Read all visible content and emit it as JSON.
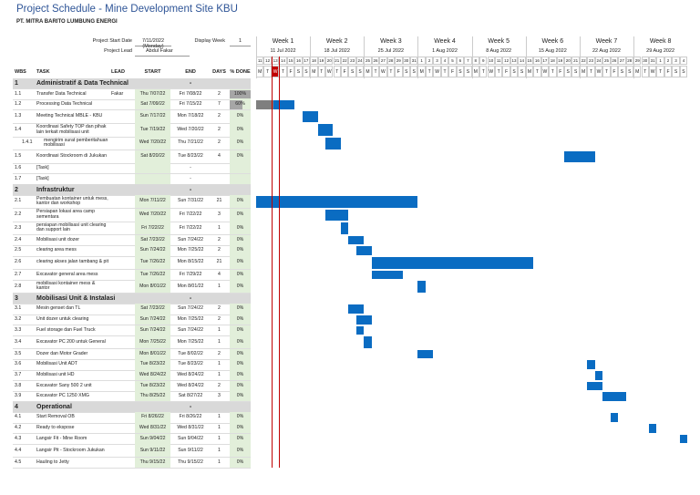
{
  "header": {
    "title": "Project Schedule - Mine Development Site KBU",
    "subtitle": "PT. MITRA BARITO LUMBUNG ENERGI"
  },
  "info": {
    "start_label": "Project Start Date",
    "start_value": "7/11/2022 (Monday)",
    "week_label": "Display Week",
    "week_value": 1,
    "lead_label": "Project Lead",
    "lead_value": "Abdul Fakar"
  },
  "columns": {
    "wbs": "WBS",
    "task": "TASK",
    "lead": "LEAD",
    "start": "START",
    "end": "END",
    "days": "DAYS",
    "done": "% DONE"
  },
  "timeline": {
    "day_letters": [
      "M",
      "T",
      "W",
      "T",
      "F",
      "S",
      "S"
    ],
    "weeks": [
      {
        "label": "Week 1",
        "date": "11 Jul 2022",
        "days": [
          11,
          12,
          13,
          14,
          15,
          16,
          17
        ]
      },
      {
        "label": "Week 2",
        "date": "18 Jul 2022",
        "days": [
          18,
          19,
          20,
          21,
          22,
          23,
          24
        ]
      },
      {
        "label": "Week 3",
        "date": "25 Jul 2022",
        "days": [
          25,
          26,
          27,
          28,
          29,
          30,
          31
        ]
      },
      {
        "label": "Week 4",
        "date": "1 Aug 2022",
        "days": [
          1,
          2,
          3,
          4,
          5,
          6,
          7
        ]
      },
      {
        "label": "Week 5",
        "date": "8 Aug 2022",
        "days": [
          8,
          9,
          10,
          11,
          12,
          13,
          14
        ]
      },
      {
        "label": "Week 6",
        "date": "15 Aug 2022",
        "days": [
          15,
          16,
          17,
          18,
          19,
          20,
          21
        ]
      },
      {
        "label": "Week 7",
        "date": "22 Aug 2022",
        "days": [
          22,
          23,
          24,
          25,
          26,
          27,
          28
        ]
      },
      {
        "label": "Week 8",
        "date": "29 Aug 2022",
        "days": [
          29,
          30,
          31,
          1,
          2,
          3,
          4
        ]
      }
    ]
  },
  "rows": [
    {
      "wbs": "1",
      "task": "Administratif & Data Technical",
      "end": "-",
      "section": true
    },
    {
      "wbs": "1.1",
      "task": "Transfer Data Technical",
      "lead": "Fakar",
      "start": "Thu 7/07/22",
      "end": "Fri 7/08/22",
      "days": 2,
      "done": "100%"
    },
    {
      "wbs": "1.2",
      "task": "Processing Data Technical",
      "start": "Sat 7/09/22",
      "end": "Fri 7/15/22",
      "days": 7,
      "done": "60%"
    },
    {
      "wbs": "1.3",
      "task": "Meeting Technical MBLE - KBU",
      "start": "Sun 7/17/22",
      "end": "Mon 7/18/22",
      "days": 2,
      "done": "0%"
    },
    {
      "wbs": "1.4",
      "task": "Koordinasi Safety TOP dan pihak lain terkait mobilisasi unit",
      "start": "Tue 7/19/22",
      "end": "Wed 7/20/22",
      "days": 2,
      "done": "0%"
    },
    {
      "wbs": "1.4.1",
      "task": "mengirim surat pemberitahuan mobilisasi",
      "start": "Wed 7/20/22",
      "end": "Thu 7/21/22",
      "days": 2,
      "done": "0%"
    },
    {
      "wbs": "1.5",
      "task": "Koordinasi Stockroom di Jukukan",
      "start": "Sat 8/20/22",
      "end": "Tue 8/23/22",
      "days": 4,
      "done": "0%"
    },
    {
      "wbs": "1.6",
      "task": "[Task]",
      "end": "-"
    },
    {
      "wbs": "1.7",
      "task": "[Task]",
      "end": "-"
    },
    {
      "wbs": "2",
      "task": "Infrastruktur",
      "end": "-",
      "section": true
    },
    {
      "wbs": "2.1",
      "task": "Pembuatan kontainer untuk mess, kantor dan workshop",
      "start": "Mon 7/11/22",
      "end": "Sun 7/31/22",
      "days": 21,
      "done": "0%"
    },
    {
      "wbs": "2.2",
      "task": "Persiapan lokasi area camp sementara",
      "start": "Wed 7/20/22",
      "end": "Fri 7/22/22",
      "days": 3,
      "done": "0%"
    },
    {
      "wbs": "2.3",
      "task": "persiapan mobilisasi unit clearing dan support lain",
      "start": "Fri 7/22/22",
      "end": "Fri 7/22/22",
      "days": 1,
      "done": "0%"
    },
    {
      "wbs": "2.4",
      "task": "Mobilisasi unit dozer",
      "start": "Sat 7/23/22",
      "end": "Sun 7/24/22",
      "days": 2,
      "done": "0%"
    },
    {
      "wbs": "2.5",
      "task": "clearing area mess",
      "start": "Sun 7/24/22",
      "end": "Mon 7/25/22",
      "days": 2,
      "done": "0%"
    },
    {
      "wbs": "2.6",
      "task": "clearing akses jalan tambang & pit",
      "start": "Tue 7/26/22",
      "end": "Mon 8/15/22",
      "days": 21,
      "done": "0%"
    },
    {
      "wbs": "2.7",
      "task": "Excavator general area mess",
      "start": "Tue 7/26/22",
      "end": "Fri 7/29/22",
      "days": 4,
      "done": "0%"
    },
    {
      "wbs": "2.8",
      "task": "mobilisasi kontainer mess & kantor",
      "start": "Mon 8/01/22",
      "end": "Mon 8/01/22",
      "days": 1,
      "done": "0%"
    },
    {
      "wbs": "3",
      "task": "Mobilisasi Unit & Instalasi",
      "end": "-",
      "section": true
    },
    {
      "wbs": "3.1",
      "task": "Mesin genset dan TL",
      "start": "Sat 7/23/22",
      "end": "Sun 7/24/22",
      "days": 2,
      "done": "0%"
    },
    {
      "wbs": "3.2",
      "task": "Unit dozer untuk clearing",
      "start": "Sun 7/24/22",
      "end": "Mon 7/25/22",
      "days": 2,
      "done": "0%"
    },
    {
      "wbs": "3.3",
      "task": "Fuel storage dan Fuel Truck",
      "start": "Sun 7/24/22",
      "end": "Sun 7/24/22",
      "days": 1,
      "done": "0%"
    },
    {
      "wbs": "3.4",
      "task": "Excavator PC 200 untuk General",
      "start": "Mon 7/25/22",
      "end": "Mon 7/25/22",
      "days": 1,
      "done": "0%"
    },
    {
      "wbs": "3.5",
      "task": "Dozer dan Motor Grader",
      "start": "Mon 8/01/22",
      "end": "Tue 8/02/22",
      "days": 2,
      "done": "0%"
    },
    {
      "wbs": "3.6",
      "task": "Mobilisasi Unit ADT",
      "start": "Tue 8/23/22",
      "end": "Tue 8/23/22",
      "days": 1,
      "done": "0%"
    },
    {
      "wbs": "3.7",
      "task": "Mobilisasi unit HD",
      "start": "Wed 8/24/22",
      "end": "Wed 8/24/22",
      "days": 1,
      "done": "0%"
    },
    {
      "wbs": "3.8",
      "task": "Excavator Sany 500 2 unit",
      "start": "Tue 8/23/22",
      "end": "Wed 8/24/22",
      "days": 2,
      "done": "0%"
    },
    {
      "wbs": "3.9",
      "task": "Excavator PC 1250 XMG",
      "start": "Thu 8/25/22",
      "end": "Sat 8/27/22",
      "days": 3,
      "done": "0%"
    },
    {
      "wbs": "4",
      "task": "Operational",
      "end": "-",
      "section": true
    },
    {
      "wbs": "4.1",
      "task": "Start Removal OB",
      "start": "Fri 8/26/22",
      "end": "Fri 8/26/22",
      "days": 1,
      "done": "0%"
    },
    {
      "wbs": "4.2",
      "task": "Ready to ekspose",
      "start": "Wed 8/31/22",
      "end": "Wed 8/31/22",
      "days": 1,
      "done": "0%"
    },
    {
      "wbs": "4.3",
      "task": "Langsir Fit - Mine Room",
      "start": "Sun 9/04/22",
      "end": "Sun 9/04/22",
      "days": 1,
      "done": "0%"
    },
    {
      "wbs": "4.4",
      "task": "Langsir Pit - Stockroom Jukukan",
      "start": "Sun 9/11/22",
      "end": "Sun 9/11/22",
      "days": 1,
      "done": "0%"
    },
    {
      "wbs": "4.5",
      "task": "Hauling to Jetty",
      "start": "Thu 9/15/22",
      "end": "Thu 9/15/22",
      "days": 1,
      "done": "0%"
    }
  ]
}
